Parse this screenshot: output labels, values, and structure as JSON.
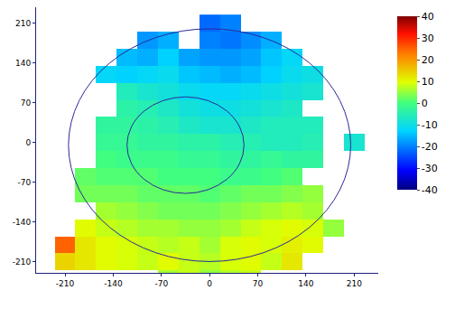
{
  "chart_data": {
    "type": "heatmap",
    "grid": false,
    "x": [
      -240,
      -210,
      -180,
      -150,
      -120,
      -90,
      -60,
      -30,
      0,
      30,
      60,
      90,
      120,
      150,
      180,
      210,
      240
    ],
    "y": [
      -240,
      -210,
      -180,
      -150,
      -120,
      -90,
      -60,
      -30,
      0,
      30,
      60,
      90,
      120,
      150,
      180,
      210
    ],
    "cells": [
      [
        null,
        null,
        null,
        null,
        null,
        null,
        6,
        8,
        5,
        7,
        8,
        null,
        null,
        null,
        null,
        null,
        null
      ],
      [
        null,
        14,
        12,
        10,
        9,
        8,
        10,
        8,
        7,
        9,
        10,
        8,
        12,
        null,
        null,
        null,
        null
      ],
      [
        null,
        25,
        12,
        10,
        9,
        8,
        7,
        8,
        6,
        9,
        10,
        9,
        11,
        10,
        null,
        null,
        null
      ],
      [
        null,
        null,
        10,
        8,
        7,
        6,
        6,
        5,
        5,
        6,
        8,
        9,
        10,
        9,
        5,
        null,
        null
      ],
      [
        null,
        null,
        null,
        6,
        5,
        4,
        3,
        3,
        3,
        4,
        5,
        6,
        7,
        6,
        null,
        null,
        null
      ],
      [
        null,
        null,
        3,
        3,
        3,
        2,
        2,
        2,
        1,
        2,
        3,
        3,
        4,
        5,
        null,
        null,
        null
      ],
      [
        null,
        null,
        2,
        1,
        1,
        1,
        0,
        0,
        0,
        -1,
        -1,
        0,
        1,
        null,
        null,
        null,
        null
      ],
      [
        null,
        null,
        null,
        0,
        -1,
        -1,
        -1,
        -2,
        -2,
        -3,
        -3,
        -2,
        -3,
        -3,
        null,
        null,
        null
      ],
      [
        null,
        null,
        null,
        -2,
        -2,
        -3,
        -3,
        -4,
        -4,
        -5,
        -5,
        -6,
        -6,
        -5,
        null,
        -8,
        null
      ],
      [
        null,
        null,
        null,
        -3,
        -3,
        -4,
        -5,
        -7,
        -8,
        -8,
        -7,
        -6,
        -6,
        -6,
        null,
        null,
        null
      ],
      [
        null,
        null,
        null,
        null,
        -4,
        -5,
        -7,
        -9,
        -10,
        -10,
        -9,
        -8,
        -7,
        null,
        null,
        null,
        null
      ],
      [
        null,
        null,
        null,
        null,
        -6,
        -8,
        -9,
        -11,
        -12,
        -12,
        -11,
        -10,
        -9,
        -8,
        null,
        null,
        null
      ],
      [
        null,
        null,
        null,
        -12,
        -13,
        -12,
        -11,
        -14,
        -15,
        -16,
        -15,
        -13,
        -11,
        -10,
        null,
        null,
        null
      ],
      [
        null,
        null,
        null,
        null,
        -15,
        -16,
        -13,
        -17,
        -18,
        -18,
        -17,
        -14,
        -12,
        null,
        null,
        null,
        null
      ],
      [
        null,
        null,
        null,
        null,
        null,
        -18,
        -16,
        null,
        -20,
        -21,
        -19,
        -16,
        null,
        null,
        null,
        null,
        null
      ],
      [
        null,
        null,
        null,
        null,
        null,
        null,
        null,
        null,
        -22,
        -20,
        null,
        null,
        null,
        null,
        null,
        null,
        null
      ]
    ],
    "xlim": [
      -252,
      245
    ],
    "ylim": [
      -230,
      238
    ],
    "xticks": [
      -210,
      -140,
      -70,
      0,
      70,
      140,
      210
    ],
    "yticks": [
      -210,
      -140,
      -70,
      0,
      70,
      140,
      210
    ],
    "colorbar_range": [
      -40,
      40
    ],
    "colorbar_ticks": [
      -40,
      -30,
      -20,
      -10,
      0,
      10,
      20,
      30,
      40
    ],
    "range_rings": [
      {
        "x": -35,
        "y": -5,
        "r": 85
      },
      {
        "x": 0,
        "y": -5,
        "r": 205
      }
    ]
  }
}
